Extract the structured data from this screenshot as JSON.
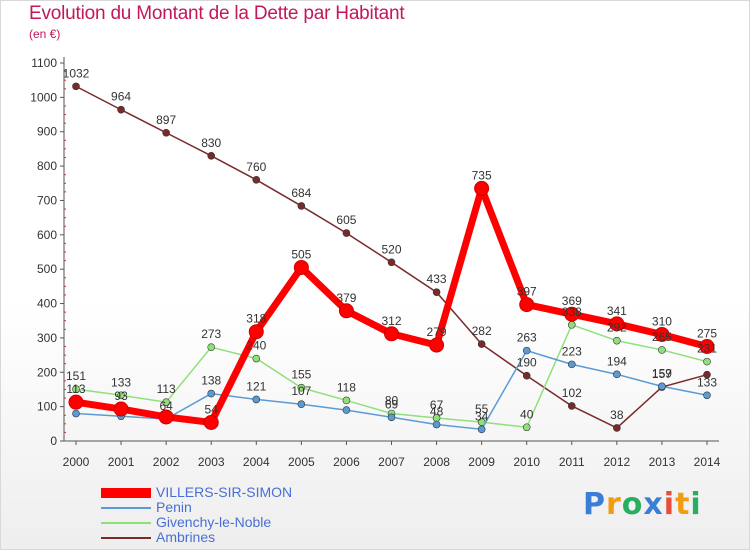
{
  "header": {
    "title": "Evolution du Montant de la Dette par Habitant",
    "unit": "(en €)"
  },
  "logo": {
    "text": "Proxiti",
    "colors": [
      "#3a7fd5",
      "#f39c12",
      "#27ae60",
      "#3a7fd5",
      "#e74c3c",
      "#f39c12",
      "#27ae60"
    ]
  },
  "chart_data": {
    "type": "line",
    "title": "Evolution du Montant de la Dette par Habitant",
    "ylabel": "(en €)",
    "xlabel": "",
    "x": [
      "2000",
      "2001",
      "2002",
      "2003",
      "2004",
      "2005",
      "2006",
      "2007",
      "2008",
      "2009",
      "2010",
      "2011",
      "2012",
      "2013",
      "2014"
    ],
    "ylim": [
      0,
      1100
    ],
    "yticks": [
      0,
      100,
      200,
      300,
      400,
      500,
      600,
      700,
      800,
      900,
      1000,
      1100
    ],
    "grid": false,
    "legend_position": "bottom-left",
    "series": [
      {
        "name": "Ambrines",
        "color": "#7a2a2a",
        "width": 1.5,
        "values": [
          1032,
          964,
          897,
          830,
          760,
          684,
          605,
          520,
          433,
          282,
          190,
          102,
          38,
          157,
          193
        ],
        "labels": [
          "1032",
          "964",
          "897",
          "830",
          "760",
          "684",
          "605",
          "520",
          "433",
          "282",
          "190",
          "102",
          "38",
          "157",
          ""
        ]
      },
      {
        "name": "Givenchy-le-Noble",
        "color": "#8fe07a",
        "width": 1.5,
        "values": [
          151,
          133,
          113,
          273,
          240,
          155,
          118,
          80,
          67,
          55,
          40,
          338,
          292,
          265,
          231
        ],
        "labels": [
          "151",
          "133",
          "113",
          "273",
          "240",
          "155",
          "118",
          "80",
          "67",
          "55",
          "40",
          "338",
          "292",
          "265",
          "231"
        ]
      },
      {
        "name": "Penin",
        "color": "#5b9bd5",
        "width": 1.5,
        "values": [
          80,
          72,
          64,
          138,
          121,
          107,
          90,
          69,
          48,
          34,
          263,
          223,
          194,
          159,
          133
        ],
        "labels": [
          "",
          "",
          "64",
          "138",
          "121",
          "107",
          "",
          "69",
          "48",
          "34",
          "263",
          "223",
          "194",
          "159",
          "133"
        ]
      },
      {
        "name": "VILLERS-SIR-SIMON",
        "color": "#ff0000",
        "width": 7,
        "values": [
          113,
          93,
          70,
          54,
          318,
          505,
          379,
          312,
          279,
          735,
          397,
          369,
          341,
          310,
          275
        ],
        "labels": [
          "113",
          "93",
          "",
          "54",
          "318",
          "505",
          "379",
          "312",
          "279",
          "735",
          "397",
          "369",
          "341",
          "310",
          "275"
        ]
      }
    ]
  }
}
